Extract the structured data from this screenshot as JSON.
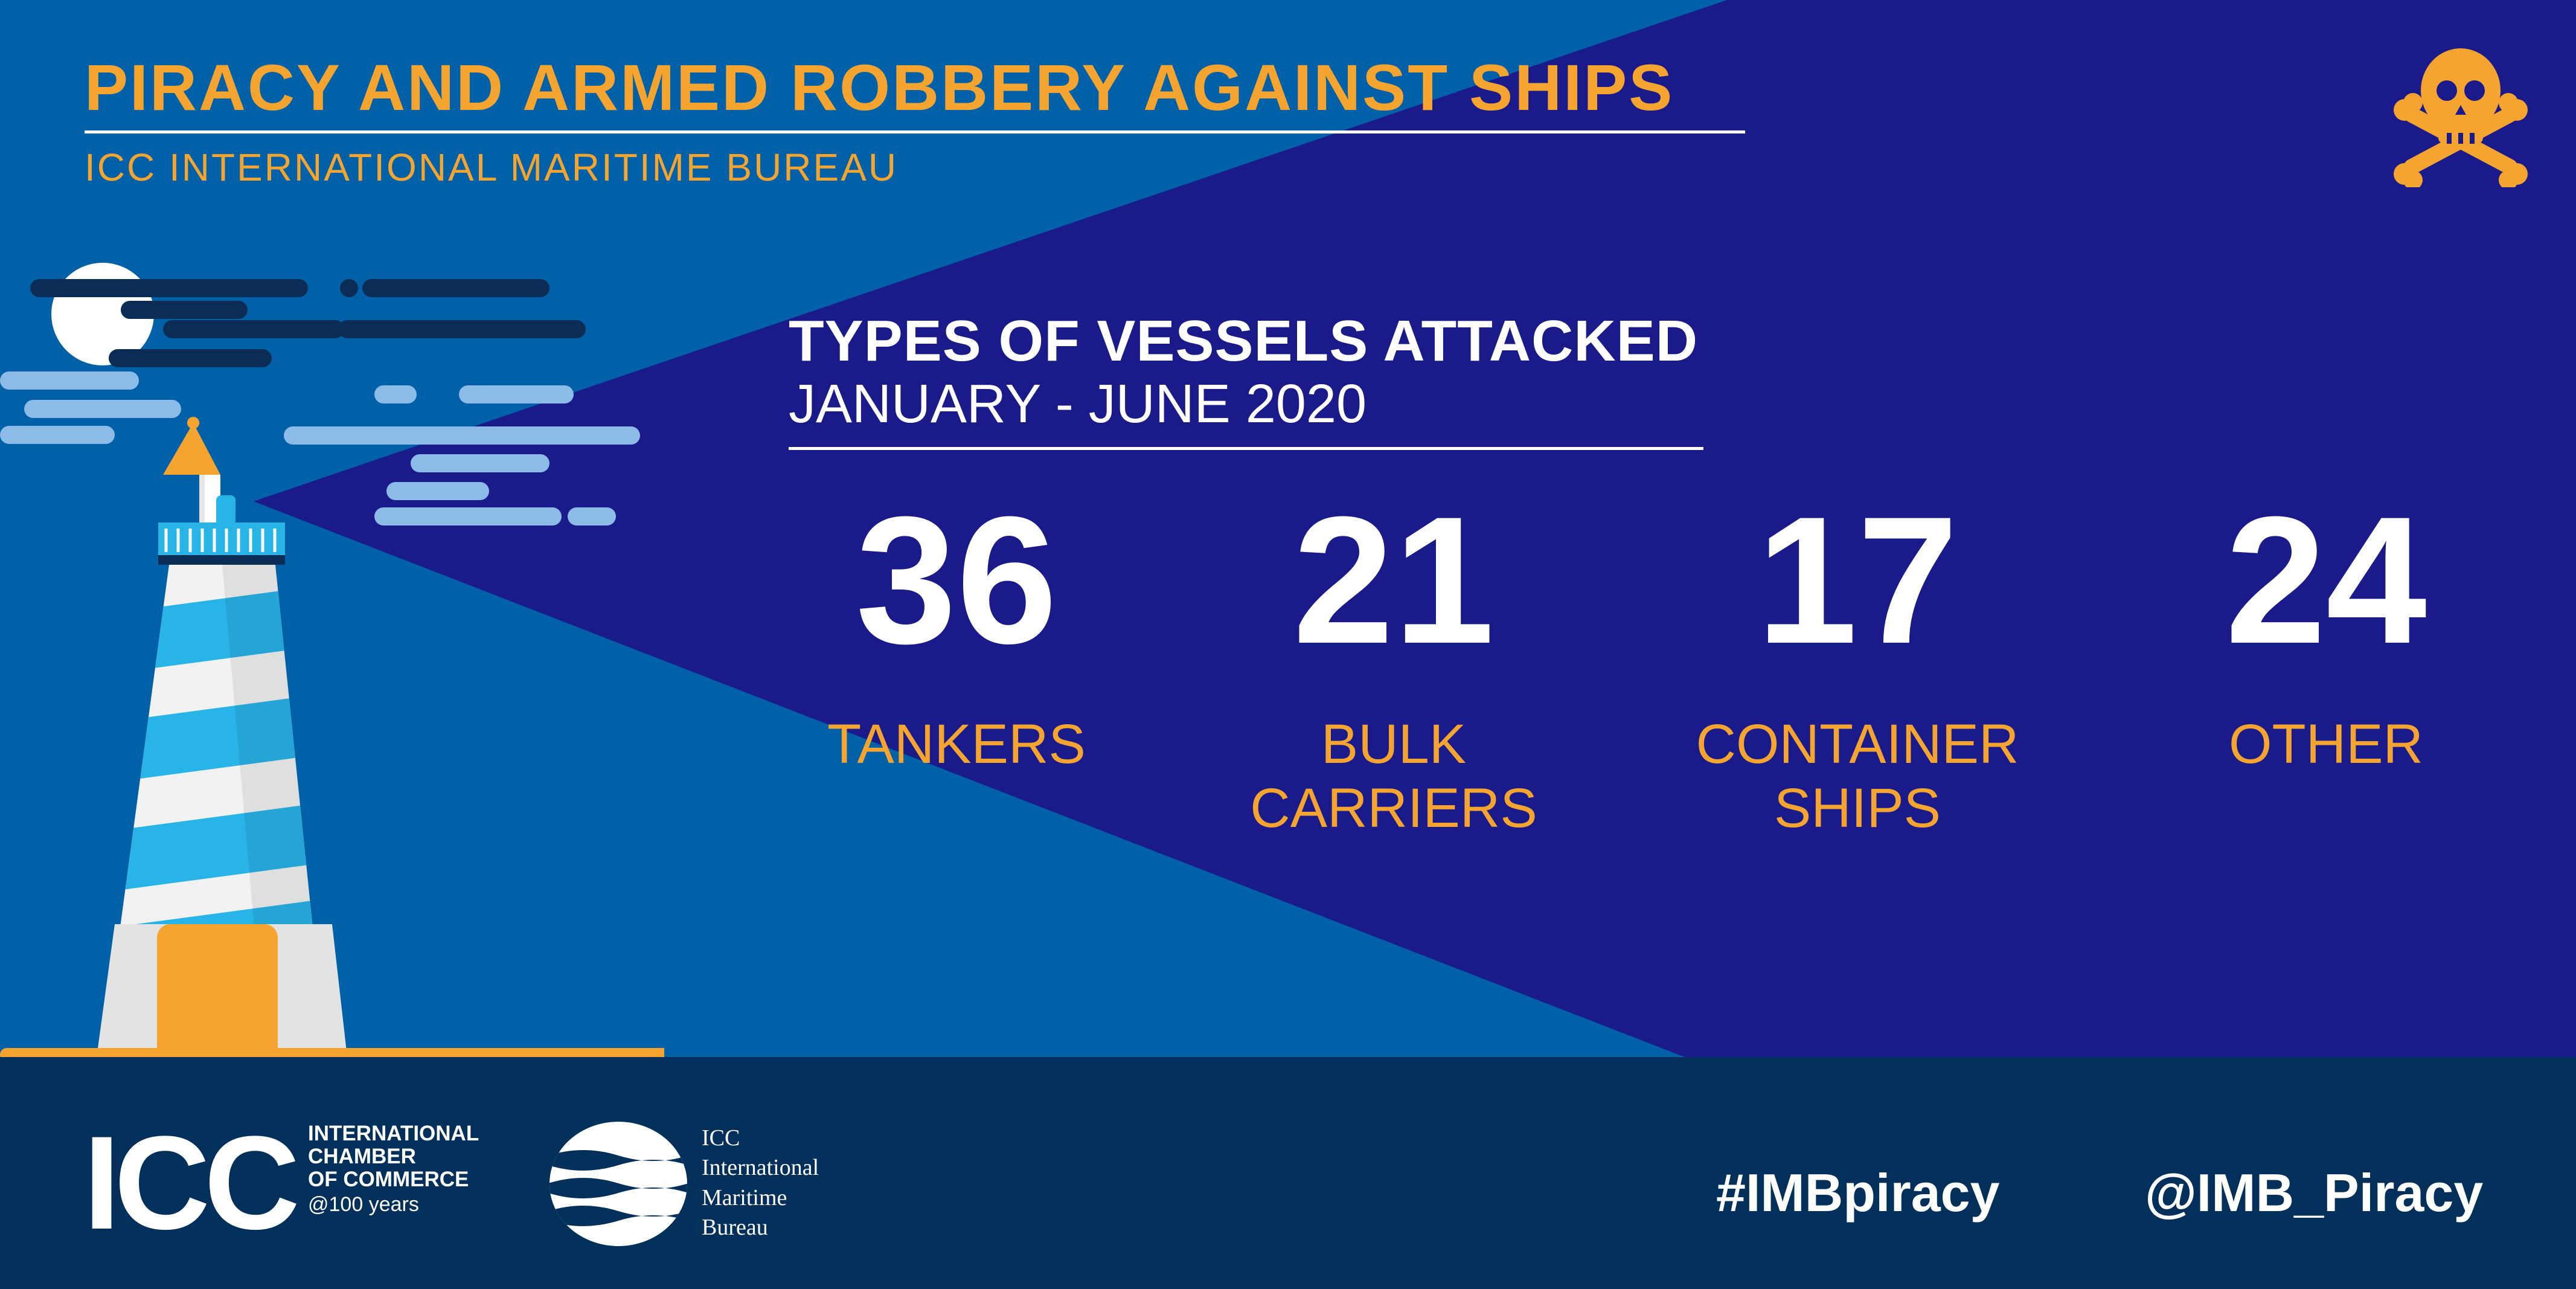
{
  "header": {
    "title": "PIRACY AND ARMED ROBBERY AGAINST SHIPS",
    "subtitle": "ICC INTERNATIONAL MARITIME BUREAU"
  },
  "section": {
    "title": "TYPES OF VESSELS ATTACKED",
    "period": "JANUARY - JUNE 2020"
  },
  "stats": [
    {
      "value": "36",
      "label": "TANKERS"
    },
    {
      "value": "21",
      "label": "BULK\nCARRIERS"
    },
    {
      "value": "17",
      "label": "CONTAINER\nSHIPS"
    },
    {
      "value": "24",
      "label": "OTHER"
    }
  ],
  "footer": {
    "icc_logo_text": "ICC",
    "icc_name": "INTERNATIONAL\nCHAMBER\nOF COMMERCE",
    "icc_anniversary": "@100 years",
    "imb_name": "ICC\nInternational\nMaritime\nBureau",
    "hashtag": "#IMBpiracy",
    "handle": "@IMB_Piracy"
  },
  "icons": {
    "skull": "skull-crossbones-icon",
    "lighthouse": "lighthouse-illustration"
  },
  "colors": {
    "accent_orange": "#f5a52f",
    "background_blue": "#0060a8",
    "beam_navy": "#1a1a8a",
    "footer_navy": "#03305a"
  }
}
